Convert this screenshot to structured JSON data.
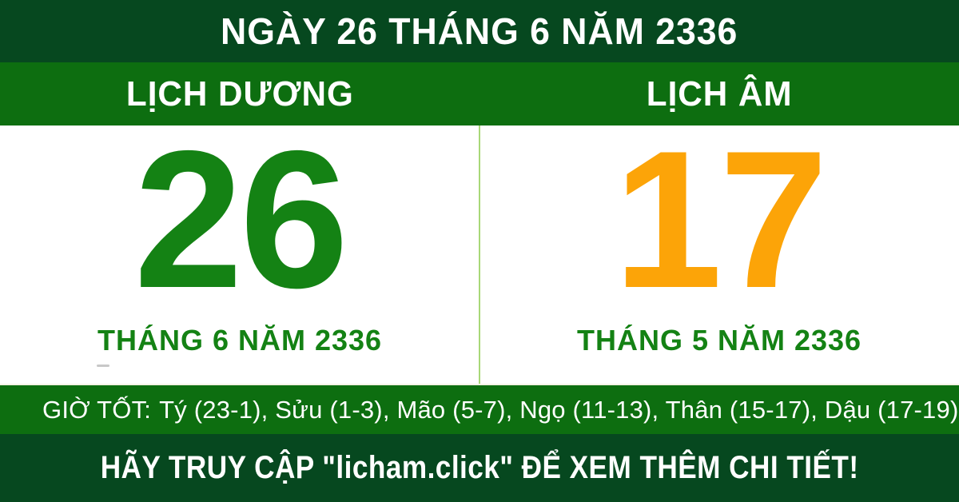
{
  "banner": {
    "title": "NGÀY 26 THÁNG 6 NĂM 2336"
  },
  "calendars": {
    "solar": {
      "label": "LỊCH DƯƠNG",
      "day": "26",
      "month_year": "THÁNG 6 NĂM 2336"
    },
    "lunar": {
      "label": "LỊCH ÂM",
      "day": "17",
      "month_year": "THÁNG 5 NĂM 2336"
    }
  },
  "good_hours": {
    "label": "GIỜ TỐT:",
    "hours": "Tý (23-1), Sửu (1-3), Mão (5-7), Ngọ (11-13), Thân (15-17), Dậu (17-19)"
  },
  "footer": {
    "cta": "HÃY TRUY CẬP \"licham.click\" ĐỂ XEM THÊM CHI TIẾT!"
  },
  "colors": {
    "top_bottom_bar_green": "#06481f",
    "header_hours_bar_green": "#0d6e10",
    "solar_day_green": "#148214",
    "lunar_day_orange": "#fca408",
    "month_label_green": "#148214",
    "divider_light_green": "#a8d878",
    "text_white": "#ffffff",
    "panel_background": "#ffffff"
  }
}
